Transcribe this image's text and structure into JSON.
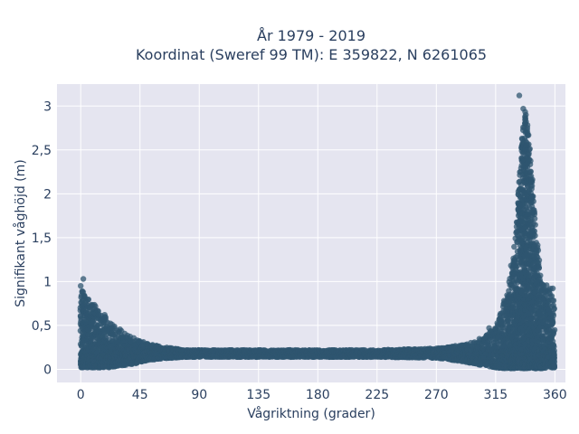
{
  "chart_data": {
    "type": "scatter",
    "title": "År 1979 - 2019",
    "subtitle": "Koordinat (Sweref 99 TM): E 359822, N 6261065",
    "xlabel": "Vågriktning (grader)",
    "ylabel": "Signifikant våghöjd (m)",
    "xlim": [
      -18,
      368
    ],
    "ylim": [
      -0.15,
      3.25
    ],
    "x_ticks": [
      0,
      45,
      90,
      135,
      180,
      225,
      270,
      315,
      360
    ],
    "x_tick_labels": [
      "0",
      "45",
      "90",
      "135",
      "180",
      "225",
      "270",
      "315",
      "360"
    ],
    "y_ticks": [
      0,
      0.5,
      1,
      1.5,
      2,
      2.5,
      3
    ],
    "y_tick_labels": [
      "0",
      "0,5",
      "1",
      "1,5",
      "2",
      "2,5",
      "3"
    ],
    "grid": true,
    "marker_color": "#2f5670",
    "plot_background": "#e5e5f0",
    "series": [
      {
        "envelope_x": [
          0,
          5,
          10,
          15,
          20,
          25,
          30,
          35,
          40,
          45,
          50,
          55,
          60,
          70,
          80,
          90,
          135,
          180,
          225,
          270,
          280,
          290,
          300,
          310,
          315,
          320,
          325,
          330,
          333,
          336,
          338,
          340,
          342,
          345,
          348,
          350,
          355,
          360
        ],
        "envelope_ymax": [
          0.92,
          0.82,
          0.74,
          0.66,
          0.6,
          0.52,
          0.45,
          0.4,
          0.36,
          0.33,
          0.3,
          0.28,
          0.26,
          0.24,
          0.22,
          0.22,
          0.22,
          0.22,
          0.22,
          0.24,
          0.26,
          0.28,
          0.32,
          0.42,
          0.5,
          0.7,
          1.0,
          1.5,
          2.2,
          2.8,
          2.95,
          2.7,
          2.3,
          1.7,
          1.3,
          1.0,
          0.95,
          0.92
        ],
        "envelope_ymin": [
          0.02,
          0.02,
          0.02,
          0.02,
          0.02,
          0.03,
          0.04,
          0.05,
          0.06,
          0.08,
          0.1,
          0.11,
          0.12,
          0.13,
          0.14,
          0.14,
          0.14,
          0.14,
          0.14,
          0.13,
          0.11,
          0.09,
          0.06,
          0.03,
          0.02,
          0.01,
          0.01,
          0.01,
          0.01,
          0.01,
          0.01,
          0.01,
          0.01,
          0.01,
          0.01,
          0.01,
          0.02,
          0.02
        ],
        "outliers": [
          [
            2,
            1.03
          ],
          [
            0,
            0.95
          ],
          [
            333,
            3.12
          ],
          [
            336,
            2.97
          ],
          [
            310,
            0.47
          ],
          [
            1,
            0.88
          ],
          [
            338,
            2.9
          ]
        ]
      }
    ]
  }
}
